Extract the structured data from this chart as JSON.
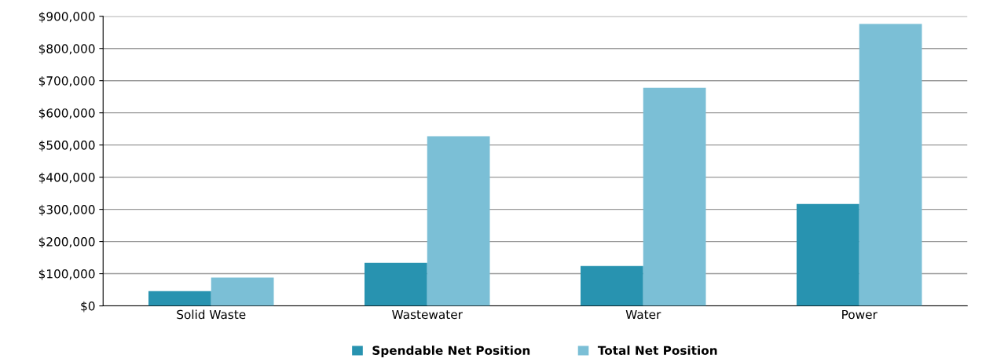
{
  "chart_data": {
    "type": "bar",
    "categories": [
      "Solid Waste",
      "Wastewater",
      "Water",
      "Power"
    ],
    "series": [
      {
        "name": "Spendable Net Position",
        "color": "#2893b0",
        "values": [
          46000,
          134000,
          124000,
          317000
        ]
      },
      {
        "name": "Total Net Position",
        "color": "#7bbfd6",
        "values": [
          88000,
          527000,
          678000,
          876000
        ]
      }
    ],
    "ylim": [
      0,
      900000
    ],
    "yticks": [
      {
        "value": 0,
        "label": "$0"
      },
      {
        "value": 100000,
        "label": "$100,000"
      },
      {
        "value": 200000,
        "label": "$200,000"
      },
      {
        "value": 300000,
        "label": "$300,000"
      },
      {
        "value": 400000,
        "label": "$400,000"
      },
      {
        "value": 500000,
        "label": "$500,000"
      },
      {
        "value": 600000,
        "label": "$600,000"
      },
      {
        "value": 700000,
        "label": "$700,000"
      },
      {
        "value": 800000,
        "label": "$800,000"
      },
      {
        "value": 900000,
        "label": "$900,000"
      }
    ],
    "grid": "y",
    "legend": "bottom"
  }
}
